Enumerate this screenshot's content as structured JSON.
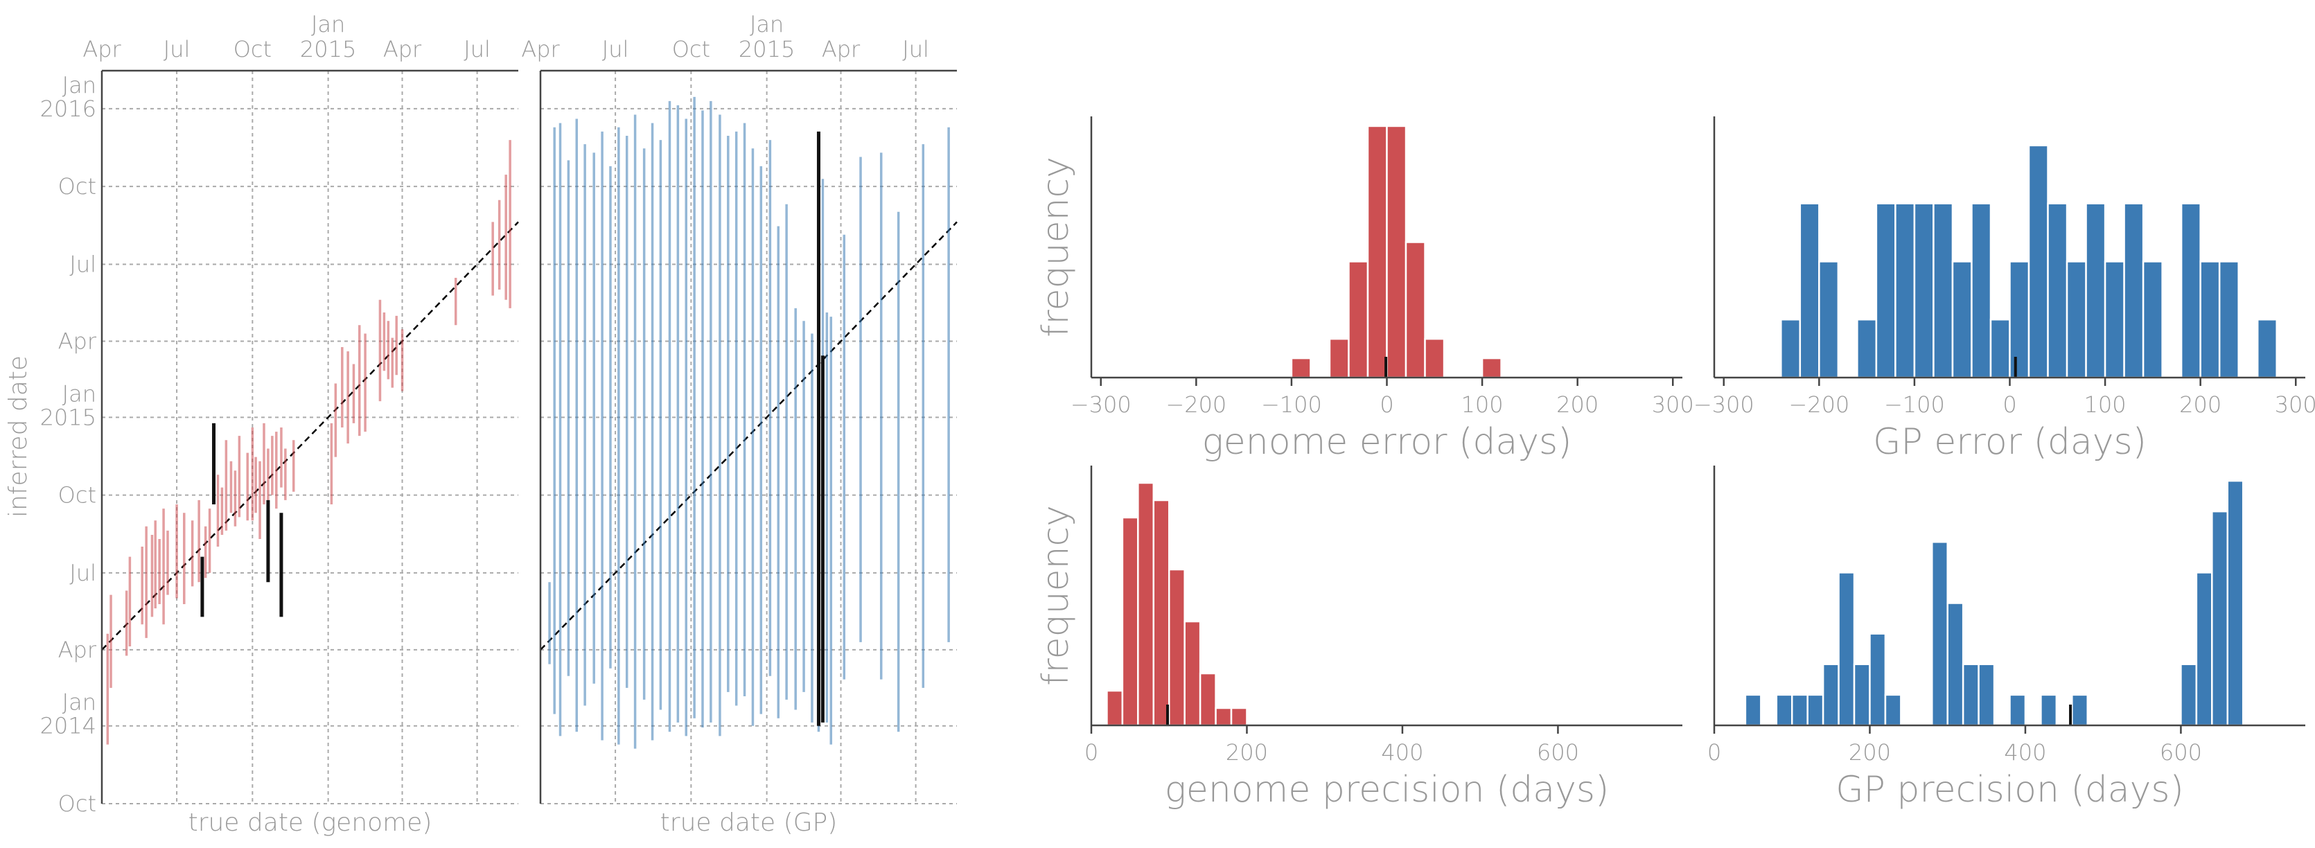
{
  "colors": {
    "genome": "#cc4f52",
    "gp": "#3c7bb4",
    "mark": "#111111",
    "text": "#999999",
    "grid": "#aaaaaa"
  },
  "chart_data": [
    {
      "type": "errorbar",
      "xlabel": "true date (genome)",
      "ylabel": "inferred date",
      "x_ticks": [
        "Apr",
        "Jul",
        "Oct",
        "Jan\n2015",
        "Apr",
        "Jul"
      ],
      "y_ticks": [
        "Oct",
        "Jan\n2014",
        "Apr",
        "Jul",
        "Oct",
        "Jan\n2015",
        "Apr",
        "Jul",
        "Oct",
        "Jan\n2016"
      ],
      "xlim": [
        "2014-04-01",
        "2015-08-20"
      ],
      "ylim": [
        "2013-10-01",
        "2016-02-15"
      ],
      "grid": true,
      "diagonal": "y = x",
      "intervals": [
        {
          "x": "2014-04-08",
          "y_low": "2013-12-10",
          "y_high": "2014-04-20"
        },
        {
          "x": "2014-04-12",
          "y_low": "2014-02-15",
          "y_high": "2014-06-05"
        },
        {
          "x": "2014-05-01",
          "y_low": "2014-03-25",
          "y_high": "2014-06-10"
        },
        {
          "x": "2014-05-05",
          "y_low": "2014-04-05",
          "y_high": "2014-07-20"
        },
        {
          "x": "2014-05-20",
          "y_low": "2014-05-01",
          "y_high": "2014-08-01"
        },
        {
          "x": "2014-05-25",
          "y_low": "2014-04-15",
          "y_high": "2014-08-25"
        },
        {
          "x": "2014-06-01",
          "y_low": "2014-05-10",
          "y_high": "2014-08-15"
        },
        {
          "x": "2014-06-05",
          "y_low": "2014-05-20",
          "y_high": "2014-09-01"
        },
        {
          "x": "2014-06-10",
          "y_low": "2014-05-25",
          "y_high": "2014-08-10"
        },
        {
          "x": "2014-06-15",
          "y_low": "2014-05-01",
          "y_high": "2014-09-15"
        },
        {
          "x": "2014-06-20",
          "y_low": "2014-06-05",
          "y_high": "2014-08-20"
        },
        {
          "x": "2014-07-01",
          "y_low": "2014-06-01",
          "y_high": "2014-09-20"
        },
        {
          "x": "2014-07-10",
          "y_low": "2014-05-25",
          "y_high": "2014-09-10"
        },
        {
          "x": "2014-07-20",
          "y_low": "2014-06-15",
          "y_high": "2014-09-01"
        },
        {
          "x": "2014-07-28",
          "y_low": "2014-06-20",
          "y_high": "2014-09-25"
        },
        {
          "x": "2014-08-05",
          "y_low": "2014-06-25",
          "y_high": "2014-08-25"
        },
        {
          "x": "2014-08-10",
          "y_low": "2014-07-01",
          "y_high": "2014-09-15"
        },
        {
          "x": "2014-08-20",
          "y_low": "2014-08-01",
          "y_high": "2014-10-25"
        },
        {
          "x": "2014-08-25",
          "y_low": "2014-08-15",
          "y_high": "2014-10-10"
        },
        {
          "x": "2014-08-30",
          "y_low": "2014-08-20",
          "y_high": "2014-12-05"
        },
        {
          "x": "2014-09-05",
          "y_low": "2014-09-10",
          "y_high": "2014-11-10"
        },
        {
          "x": "2014-09-10",
          "y_low": "2014-08-25",
          "y_high": "2014-10-30"
        },
        {
          "x": "2014-09-15",
          "y_low": "2014-09-05",
          "y_high": "2014-12-10"
        },
        {
          "x": "2014-09-25",
          "y_low": "2014-09-01",
          "y_high": "2014-11-20"
        },
        {
          "x": "2014-10-01",
          "y_low": "2014-09-01",
          "y_high": "2014-12-20"
        },
        {
          "x": "2014-10-05",
          "y_low": "2014-09-10",
          "y_high": "2014-11-15"
        },
        {
          "x": "2014-10-10",
          "y_low": "2014-08-10",
          "y_high": "2014-11-10"
        },
        {
          "x": "2014-10-15",
          "y_low": "2014-09-20",
          "y_high": "2014-12-25"
        },
        {
          "x": "2014-10-20",
          "y_low": "2014-09-25",
          "y_high": "2014-11-25"
        },
        {
          "x": "2014-10-25",
          "y_low": "2014-10-01",
          "y_high": "2014-12-10"
        },
        {
          "x": "2014-10-30",
          "y_low": "2014-09-15",
          "y_high": "2014-12-15"
        },
        {
          "x": "2014-11-05",
          "y_low": "2014-10-10",
          "y_high": "2014-12-20"
        },
        {
          "x": "2014-11-10",
          "y_low": "2014-09-25",
          "y_high": "2014-11-25"
        },
        {
          "x": "2014-11-20",
          "y_low": "2014-10-05",
          "y_high": "2014-12-05"
        },
        {
          "x": "2015-01-05",
          "y_low": "2014-09-20",
          "y_high": "2014-12-25"
        },
        {
          "x": "2015-01-10",
          "y_low": "2014-11-15",
          "y_high": "2015-02-10"
        },
        {
          "x": "2015-01-18",
          "y_low": "2014-12-20",
          "y_high": "2015-03-25"
        },
        {
          "x": "2015-01-25",
          "y_low": "2014-12-01",
          "y_high": "2015-03-20"
        },
        {
          "x": "2015-02-01",
          "y_low": "2014-12-25",
          "y_high": "2015-03-05"
        },
        {
          "x": "2015-02-08",
          "y_low": "2014-12-10",
          "y_high": "2015-04-20"
        },
        {
          "x": "2015-02-15",
          "y_low": "2014-12-15",
          "y_high": "2015-04-10"
        },
        {
          "x": "2015-03-05",
          "y_low": "2015-01-20",
          "y_high": "2015-05-20"
        },
        {
          "x": "2015-03-10",
          "y_low": "2015-02-25",
          "y_high": "2015-05-05"
        },
        {
          "x": "2015-03-15",
          "y_low": "2015-02-15",
          "y_high": "2015-04-25"
        },
        {
          "x": "2015-03-20",
          "y_low": "2015-02-05",
          "y_high": "2015-04-05"
        },
        {
          "x": "2015-03-25",
          "y_low": "2015-02-20",
          "y_high": "2015-05-01"
        },
        {
          "x": "2015-04-01",
          "y_low": "2015-02-01",
          "y_high": "2015-04-15"
        },
        {
          "x": "2015-06-05",
          "y_low": "2015-04-20",
          "y_high": "2015-06-15"
        },
        {
          "x": "2015-07-20",
          "y_low": "2015-05-25",
          "y_high": "2015-08-20"
        },
        {
          "x": "2015-07-28",
          "y_low": "2015-06-01",
          "y_high": "2015-09-15"
        },
        {
          "x": "2015-08-05",
          "y_low": "2015-05-20",
          "y_high": "2015-10-15"
        },
        {
          "x": "2015-08-10",
          "y_low": "2015-05-10",
          "y_high": "2015-11-25"
        }
      ],
      "highlighted": [
        {
          "x": "2014-08-01",
          "y_low": "2014-05-10",
          "y_high": "2014-07-20"
        },
        {
          "x": "2014-08-15",
          "y_low": "2014-09-20",
          "y_high": "2014-12-25"
        },
        {
          "x": "2014-10-20",
          "y_low": "2014-06-20",
          "y_high": "2014-09-25"
        },
        {
          "x": "2014-11-05",
          "y_low": "2014-05-10",
          "y_high": "2014-09-10"
        }
      ]
    },
    {
      "type": "errorbar",
      "xlabel": "true date (GP)",
      "x_ticks": [
        "Apr",
        "Jul",
        "Oct",
        "Jan\n2015",
        "Apr",
        "Jul"
      ],
      "xlim": [
        "2014-04-01",
        "2015-08-20"
      ],
      "ylim": [
        "2013-10-01",
        "2016-02-15"
      ],
      "grid": true,
      "diagonal": "y = x",
      "intervals": [
        {
          "x": "2014-04-12",
          "y_low": "2014-03-15",
          "y_high": "2014-06-20"
        },
        {
          "x": "2014-04-18",
          "y_low": "2014-01-15",
          "y_high": "2015-12-10"
        },
        {
          "x": "2014-04-25",
          "y_low": "2013-12-20",
          "y_high": "2015-12-15"
        },
        {
          "x": "2014-05-05",
          "y_low": "2014-03-01",
          "y_high": "2015-11-01"
        },
        {
          "x": "2014-05-15",
          "y_low": "2013-12-25",
          "y_high": "2015-12-20"
        },
        {
          "x": "2014-05-25",
          "y_low": "2014-01-25",
          "y_high": "2015-11-20"
        },
        {
          "x": "2014-06-05",
          "y_low": "2014-02-20",
          "y_high": "2015-11-10"
        },
        {
          "x": "2014-06-15",
          "y_low": "2013-12-15",
          "y_high": "2015-12-05"
        },
        {
          "x": "2014-06-25",
          "y_low": "2014-03-10",
          "y_high": "2015-10-25"
        },
        {
          "x": "2014-07-05",
          "y_low": "2013-12-10",
          "y_high": "2015-12-10"
        },
        {
          "x": "2014-07-15",
          "y_low": "2014-02-15",
          "y_high": "2015-11-30"
        },
        {
          "x": "2014-07-25",
          "y_low": "2013-12-05",
          "y_high": "2015-12-25"
        },
        {
          "x": "2014-08-05",
          "y_low": "2014-02-01",
          "y_high": "2015-11-15"
        },
        {
          "x": "2014-08-15",
          "y_low": "2013-12-15",
          "y_high": "2015-12-15"
        },
        {
          "x": "2014-08-25",
          "y_low": "2014-01-20",
          "y_high": "2015-11-25"
        },
        {
          "x": "2014-09-05",
          "y_low": "2013-12-25",
          "y_high": "2016-01-10"
        },
        {
          "x": "2014-09-15",
          "y_low": "2014-01-05",
          "y_high": "2016-01-05"
        },
        {
          "x": "2014-09-25",
          "y_low": "2013-12-20",
          "y_high": "2015-12-20"
        },
        {
          "x": "2014-10-05",
          "y_low": "2014-01-10",
          "y_high": "2016-01-15"
        },
        {
          "x": "2014-10-15",
          "y_low": "2013-12-30",
          "y_high": "2015-12-30"
        },
        {
          "x": "2014-10-25",
          "y_low": "2014-01-05",
          "y_high": "2016-01-10"
        },
        {
          "x": "2014-11-05",
          "y_low": "2013-12-20",
          "y_high": "2015-12-25"
        },
        {
          "x": "2014-11-15",
          "y_low": "2014-02-10",
          "y_high": "2015-11-30"
        },
        {
          "x": "2014-11-25",
          "y_low": "2014-01-25",
          "y_high": "2015-12-05"
        },
        {
          "x": "2014-12-05",
          "y_low": "2014-02-05",
          "y_high": "2015-12-15"
        },
        {
          "x": "2014-12-15",
          "y_low": "2014-01-01",
          "y_high": "2015-11-15"
        },
        {
          "x": "2014-12-25",
          "y_low": "2014-01-15",
          "y_high": "2015-10-25"
        },
        {
          "x": "2015-01-05",
          "y_low": "2014-03-01",
          "y_high": "2015-11-25"
        },
        {
          "x": "2015-01-15",
          "y_low": "2014-01-10",
          "y_high": "2015-08-15"
        },
        {
          "x": "2015-01-25",
          "y_low": "2014-02-01",
          "y_high": "2015-09-10"
        },
        {
          "x": "2015-02-05",
          "y_low": "2014-01-20",
          "y_high": "2015-05-10"
        },
        {
          "x": "2015-02-15",
          "y_low": "2014-02-10",
          "y_high": "2015-04-25"
        },
        {
          "x": "2015-02-25",
          "y_low": "2014-01-05",
          "y_high": "2015-04-10"
        },
        {
          "x": "2015-03-05",
          "y_low": "2013-12-25",
          "y_high": "2015-05-15"
        },
        {
          "x": "2015-03-10",
          "y_low": "2014-02-15",
          "y_high": "2015-10-10"
        },
        {
          "x": "2015-03-15",
          "y_low": "2014-01-05",
          "y_high": "2015-05-05"
        },
        {
          "x": "2015-03-20",
          "y_low": "2013-12-10",
          "y_high": "2015-04-30"
        },
        {
          "x": "2015-04-05",
          "y_low": "2014-02-25",
          "y_high": "2015-08-05"
        },
        {
          "x": "2015-04-25",
          "y_low": "2014-04-10",
          "y_high": "2015-11-05"
        },
        {
          "x": "2015-05-20",
          "y_low": "2014-02-25",
          "y_high": "2015-11-10"
        },
        {
          "x": "2015-06-10",
          "y_low": "2013-12-25",
          "y_high": "2015-09-01"
        },
        {
          "x": "2015-07-10",
          "y_low": "2014-02-15",
          "y_high": "2015-11-20"
        },
        {
          "x": "2015-08-10",
          "y_low": "2014-04-10",
          "y_high": "2015-12-10"
        }
      ],
      "highlighted": [
        {
          "x": "2015-03-05",
          "y_low": "2014-01-01",
          "y_high": "2015-12-05"
        },
        {
          "x": "2015-03-10",
          "y_low": "2014-01-05",
          "y_high": "2015-03-15"
        }
      ]
    },
    {
      "type": "bar",
      "xlabel": "genome error (days)",
      "ylabel": "frequency",
      "x_ticks": [
        "−300",
        "−200",
        "−100",
        "0",
        "100",
        "200",
        "300"
      ],
      "xlim": [
        -310,
        310
      ],
      "bin_width": 20,
      "bins": [
        {
          "x": -100,
          "value": 1
        },
        {
          "x": -60,
          "value": 2
        },
        {
          "x": -40,
          "value": 6
        },
        {
          "x": -20,
          "value": 13
        },
        {
          "x": 0,
          "value": 13
        },
        {
          "x": 20,
          "value": 7
        },
        {
          "x": 40,
          "value": 2
        },
        {
          "x": 100,
          "value": 1
        }
      ],
      "ymax": 13.5,
      "marker": -1
    },
    {
      "type": "bar",
      "xlabel": "GP error (days)",
      "x_ticks": [
        "−300",
        "−200",
        "−100",
        "0",
        "100",
        "200",
        "300"
      ],
      "xlim": [
        -310,
        310
      ],
      "bin_width": 20,
      "bins": [
        {
          "x": -240,
          "value": 1
        },
        {
          "x": -220,
          "value": 3
        },
        {
          "x": -200,
          "value": 2
        },
        {
          "x": -160,
          "value": 1
        },
        {
          "x": -140,
          "value": 3
        },
        {
          "x": -120,
          "value": 3
        },
        {
          "x": -100,
          "value": 3
        },
        {
          "x": -80,
          "value": 3
        },
        {
          "x": -60,
          "value": 2
        },
        {
          "x": -40,
          "value": 3
        },
        {
          "x": -20,
          "value": 1
        },
        {
          "x": 0,
          "value": 2
        },
        {
          "x": 20,
          "value": 4
        },
        {
          "x": 40,
          "value": 3
        },
        {
          "x": 60,
          "value": 2
        },
        {
          "x": 80,
          "value": 3
        },
        {
          "x": 100,
          "value": 2
        },
        {
          "x": 120,
          "value": 3
        },
        {
          "x": 140,
          "value": 2
        },
        {
          "x": 180,
          "value": 3
        },
        {
          "x": 200,
          "value": 2
        },
        {
          "x": 220,
          "value": 2
        },
        {
          "x": 260,
          "value": 1
        }
      ],
      "ymax": 4.5,
      "marker": 6
    },
    {
      "type": "bar",
      "xlabel": "genome precision (days)",
      "ylabel": "frequency",
      "x_ticks": [
        "0",
        "200",
        "400",
        "600"
      ],
      "xlim": [
        0,
        760
      ],
      "bin_width": 20,
      "bins": [
        {
          "x": 20,
          "value": 2
        },
        {
          "x": 40,
          "value": 12
        },
        {
          "x": 60,
          "value": 14
        },
        {
          "x": 80,
          "value": 13
        },
        {
          "x": 100,
          "value": 9
        },
        {
          "x": 120,
          "value": 6
        },
        {
          "x": 140,
          "value": 3
        },
        {
          "x": 160,
          "value": 1
        },
        {
          "x": 180,
          "value": 1
        }
      ],
      "ymax": 15,
      "marker": 98
    },
    {
      "type": "bar",
      "xlabel": "GP precision (days)",
      "x_ticks": [
        "0",
        "200",
        "400",
        "600"
      ],
      "xlim": [
        0,
        760
      ],
      "bin_width": 20,
      "bins": [
        {
          "x": 40,
          "value": 1
        },
        {
          "x": 80,
          "value": 1
        },
        {
          "x": 100,
          "value": 1
        },
        {
          "x": 120,
          "value": 1
        },
        {
          "x": 140,
          "value": 2
        },
        {
          "x": 160,
          "value": 5
        },
        {
          "x": 180,
          "value": 2
        },
        {
          "x": 200,
          "value": 3
        },
        {
          "x": 220,
          "value": 1
        },
        {
          "x": 280,
          "value": 6
        },
        {
          "x": 300,
          "value": 4
        },
        {
          "x": 320,
          "value": 2
        },
        {
          "x": 340,
          "value": 2
        },
        {
          "x": 380,
          "value": 1
        },
        {
          "x": 420,
          "value": 1
        },
        {
          "x": 460,
          "value": 1
        },
        {
          "x": 600,
          "value": 2
        },
        {
          "x": 620,
          "value": 5
        },
        {
          "x": 640,
          "value": 7
        },
        {
          "x": 660,
          "value": 8
        }
      ],
      "ymax": 8.5,
      "marker": 458
    }
  ]
}
